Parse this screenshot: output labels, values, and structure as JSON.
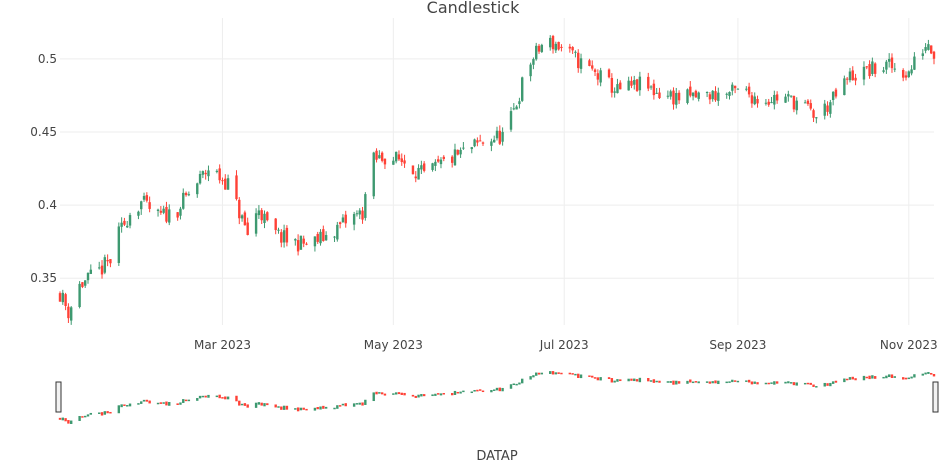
{
  "chart_data": {
    "type": "candlestick",
    "title": "Candlestick",
    "xlabel": "DATAP",
    "ylabel": "",
    "x_range": [
      "2023-01-02",
      "2023-11-10"
    ],
    "ylim": [
      0.318,
      0.528
    ],
    "y_ticks": [
      0.35,
      0.4,
      0.45,
      0.5
    ],
    "y_tick_labels": [
      "0.35",
      "0.4",
      "0.45",
      "0.5"
    ],
    "x_ticks": [
      "2023-03-01",
      "2023-05-01",
      "2023-07-01",
      "2023-09-01",
      "2023-11-01"
    ],
    "x_tick_labels": [
      "Mar 2023",
      "May 2023",
      "Jul 2023",
      "Sep 2023",
      "Nov 2023"
    ],
    "rangeslider": true,
    "grid": true,
    "colors": {
      "increasing": "#3D9970",
      "decreasing": "#FF4136",
      "grid": "#eeeeee",
      "text": "#444444"
    },
    "anchors": [
      [
        "2023-01-02",
        0.34
      ],
      [
        "2023-01-05",
        0.327
      ],
      [
        "2023-01-09",
        0.345
      ],
      [
        "2023-01-15",
        0.353
      ],
      [
        "2023-01-20",
        0.362
      ],
      [
        "2023-01-23",
        0.38
      ],
      [
        "2023-01-27",
        0.395
      ],
      [
        "2023-01-31",
        0.402
      ],
      [
        "2023-02-06",
        0.392
      ],
      [
        "2023-02-12",
        0.395
      ],
      [
        "2023-02-18",
        0.41
      ],
      [
        "2023-02-24",
        0.425
      ],
      [
        "2023-03-03",
        0.415
      ],
      [
        "2023-03-06",
        0.4
      ],
      [
        "2023-03-10",
        0.38
      ],
      [
        "2023-03-14",
        0.398
      ],
      [
        "2023-03-18",
        0.382
      ],
      [
        "2023-03-25",
        0.375
      ],
      [
        "2023-04-01",
        0.373
      ],
      [
        "2023-04-08",
        0.38
      ],
      [
        "2023-04-15",
        0.39
      ],
      [
        "2023-04-20",
        0.395
      ],
      [
        "2023-04-23",
        0.43
      ],
      [
        "2023-04-28",
        0.433
      ],
      [
        "2023-05-05",
        0.43
      ],
      [
        "2023-05-12",
        0.42
      ],
      [
        "2023-05-20",
        0.43
      ],
      [
        "2023-05-28",
        0.438
      ],
      [
        "2023-06-04",
        0.445
      ],
      [
        "2023-06-10",
        0.448
      ],
      [
        "2023-06-14",
        0.47
      ],
      [
        "2023-06-18",
        0.495
      ],
      [
        "2023-06-24",
        0.512
      ],
      [
        "2023-06-28",
        0.51
      ],
      [
        "2023-07-05",
        0.5
      ],
      [
        "2023-07-12",
        0.49
      ],
      [
        "2023-07-20",
        0.478
      ],
      [
        "2023-07-28",
        0.482
      ],
      [
        "2023-08-05",
        0.476
      ],
      [
        "2023-08-12",
        0.473
      ],
      [
        "2023-08-20",
        0.475
      ],
      [
        "2023-08-27",
        0.476
      ],
      [
        "2023-09-03",
        0.478
      ],
      [
        "2023-09-09",
        0.472
      ],
      [
        "2023-09-16",
        0.474
      ],
      [
        "2023-09-23",
        0.47
      ],
      [
        "2023-09-29",
        0.46
      ],
      [
        "2023-10-05",
        0.472
      ],
      [
        "2023-10-11",
        0.488
      ],
      [
        "2023-10-18",
        0.492
      ],
      [
        "2023-10-25",
        0.495
      ],
      [
        "2023-11-01",
        0.49
      ],
      [
        "2023-11-05",
        0.505
      ],
      [
        "2023-11-08",
        0.512
      ],
      [
        "2023-11-10",
        0.505
      ]
    ]
  }
}
